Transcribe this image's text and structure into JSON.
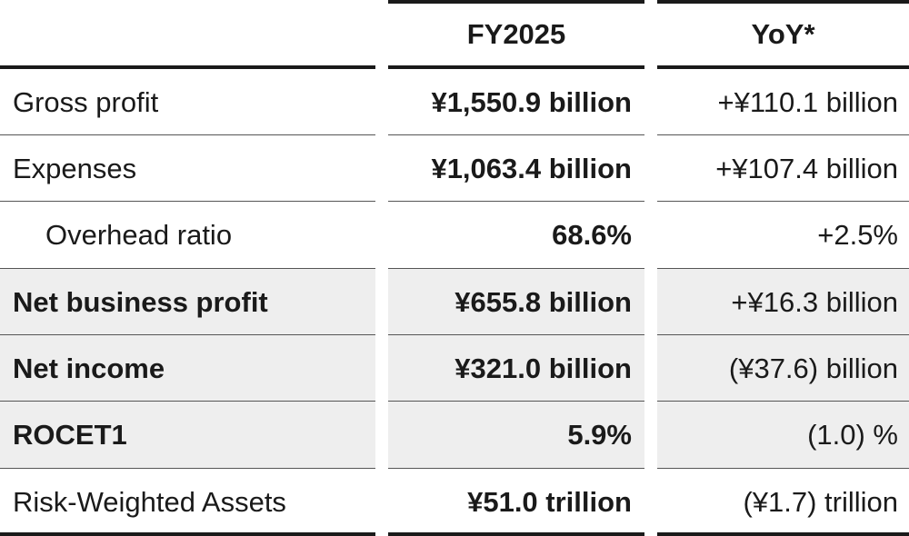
{
  "columns": {
    "period": "FY2025",
    "change": "YoY*"
  },
  "rows": [
    {
      "label": "Gross profit",
      "value": "¥1,550.9 billion",
      "yoy": "+¥110.1 billion"
    },
    {
      "label": "Expenses",
      "value": "¥1,063.4 billion",
      "yoy": "+¥107.4 billion"
    },
    {
      "label": "Overhead ratio",
      "value": "68.6%",
      "yoy": "+2.5%"
    },
    {
      "label": "Net business profit",
      "value": "¥655.8 billion",
      "yoy": "+¥16.3 billion"
    },
    {
      "label": "Net income",
      "value": "¥321.0 billion",
      "yoy": "(¥37.6) billion"
    },
    {
      "label": "ROCET1",
      "value": "5.9%",
      "yoy": "(1.0) %"
    },
    {
      "label": "Risk-Weighted Assets",
      "value": "¥51.0 trillion",
      "yoy": "(¥1.7) trillion"
    }
  ]
}
